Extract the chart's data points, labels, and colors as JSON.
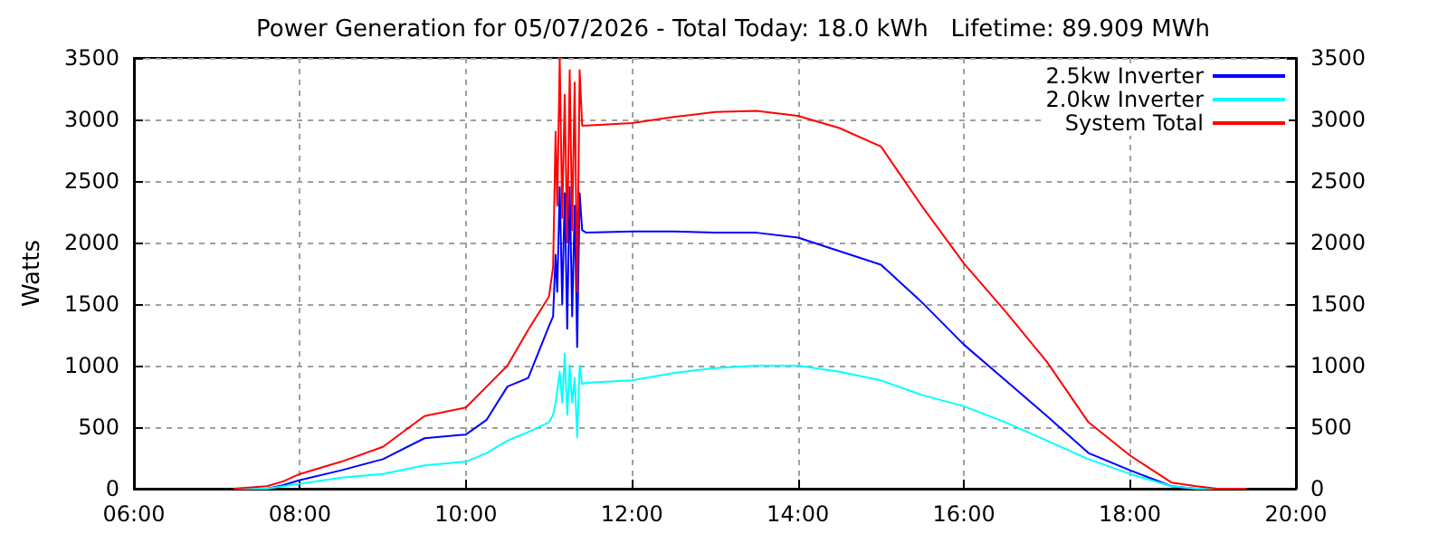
{
  "chart_data": {
    "type": "line",
    "title": "Power Generation for 05/07/2026 - Total Today: 18.0 kWh   Lifetime: 89.909 MWh",
    "ylabel": "Watts",
    "x": [
      7.2,
      7.6,
      7.8,
      8,
      8.5,
      9,
      9.5,
      10,
      10.25,
      10.5,
      10.75,
      11,
      11.05,
      11.08,
      11.1,
      11.13,
      11.16,
      11.19,
      11.22,
      11.25,
      11.28,
      11.31,
      11.34,
      11.37,
      11.4,
      11.45,
      12,
      12.5,
      13,
      13.5,
      14,
      14.5,
      15,
      15.5,
      16,
      16.5,
      17,
      17.5,
      18,
      18.5,
      18.8,
      19.05,
      19.4
    ],
    "series": [
      {
        "name": "2.5kw Inverter",
        "color": "#0000ff",
        "values": [
          0,
          0,
          30,
          70,
          150,
          240,
          410,
          440,
          560,
          830,
          900,
          1320,
          1400,
          1900,
          1600,
          2450,
          1500,
          2400,
          1300,
          2450,
          1400,
          2300,
          1150,
          2400,
          2100,
          2080,
          2090,
          2090,
          2080,
          2080,
          2040,
          1930,
          1820,
          1510,
          1170,
          880,
          590,
          290,
          150,
          20,
          0,
          0,
          null
        ]
      },
      {
        "name": "2.0kw Inverter",
        "color": "#00ffff",
        "values": [
          0,
          0,
          20,
          40,
          90,
          120,
          190,
          220,
          290,
          390,
          460,
          540,
          600,
          700,
          800,
          950,
          700,
          1100,
          600,
          1000,
          700,
          900,
          420,
          1000,
          850,
          860,
          880,
          940,
          980,
          1000,
          1000,
          950,
          880,
          760,
          670,
          540,
          390,
          240,
          120,
          20,
          0,
          0,
          null
        ]
      },
      {
        "name": "System Total",
        "color": "#ff0000",
        "values": [
          0,
          20,
          60,
          120,
          220,
          340,
          590,
          660,
          830,
          1000,
          1290,
          1560,
          1800,
          2900,
          2300,
          3500,
          2200,
          3200,
          2000,
          3400,
          2100,
          3300,
          1600,
          3400,
          2950,
          2950,
          2970,
          3020,
          3060,
          3070,
          3030,
          2930,
          2780,
          2290,
          1830,
          1440,
          1030,
          540,
          270,
          50,
          20,
          0,
          0
        ]
      }
    ],
    "xlim": [
      6,
      20
    ],
    "xticks": [
      {
        "value": 6,
        "label": "06:00"
      },
      {
        "value": 8,
        "label": "08:00"
      },
      {
        "value": 10,
        "label": "10:00"
      },
      {
        "value": 12,
        "label": "12:00"
      },
      {
        "value": 14,
        "label": "14:00"
      },
      {
        "value": 16,
        "label": "16:00"
      },
      {
        "value": 18,
        "label": "18:00"
      },
      {
        "value": 20,
        "label": "20:00"
      }
    ],
    "ylim": [
      0,
      3500
    ],
    "yticks": [
      0,
      500,
      1000,
      1500,
      2000,
      2500,
      3000,
      3500
    ],
    "y2lim": [
      0,
      3500
    ],
    "y2ticks": [
      0,
      500,
      1000,
      1500,
      2000,
      2500,
      3000,
      3500
    ],
    "grid": true,
    "legend": "top right",
    "marker": "none",
    "line_style": "solid"
  }
}
